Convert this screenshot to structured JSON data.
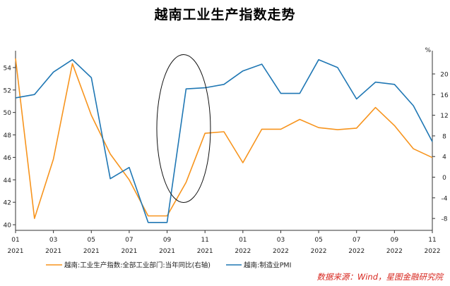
{
  "chart_data": {
    "type": "line",
    "title": "越南工业生产指数走势",
    "x_months": [
      "01",
      "02",
      "03",
      "04",
      "05",
      "06",
      "07",
      "08",
      "09",
      "10",
      "11",
      "12",
      "01",
      "02",
      "03",
      "04",
      "05",
      "06",
      "07",
      "08",
      "09",
      "10",
      "11"
    ],
    "x_labels": [
      {
        "index": 0,
        "month": "01",
        "year": "2021"
      },
      {
        "index": 2,
        "month": "03",
        "year": "2021"
      },
      {
        "index": 4,
        "month": "05",
        "year": "2021"
      },
      {
        "index": 6,
        "month": "07",
        "year": "2021"
      },
      {
        "index": 8,
        "month": "09",
        "year": "2021"
      },
      {
        "index": 10,
        "month": "11",
        "year": "2021"
      },
      {
        "index": 12,
        "month": "01",
        "year": "2022"
      },
      {
        "index": 14,
        "month": "03",
        "year": "2022"
      },
      {
        "index": 16,
        "month": "05",
        "year": "2022"
      },
      {
        "index": 18,
        "month": "07",
        "year": "2022"
      },
      {
        "index": 20,
        "month": "09",
        "year": "2022"
      },
      {
        "index": 22,
        "month": "11",
        "year": "2022"
      }
    ],
    "left_axis": {
      "ylim": [
        39.5,
        55.5
      ],
      "ticks": [
        "40",
        "42",
        "44",
        "46",
        "48",
        "50",
        "52",
        "54"
      ]
    },
    "right_axis": {
      "unit": "%",
      "ylim": [
        -10.3,
        24.5
      ],
      "ticks": [
        "-8",
        "-4",
        "0",
        "4",
        "8",
        "12",
        "16",
        "20"
      ]
    },
    "series": [
      {
        "name": "越南:工业生产指数:全部工业部门:当年同比(右轴)",
        "axis": "right",
        "color": "#f7941d",
        "values": [
          23.0,
          -8.0,
          3.5,
          22.0,
          12.0,
          4.5,
          -0.5,
          -7.5,
          -7.5,
          -1.0,
          8.5,
          8.8,
          2.8,
          9.3,
          9.3,
          11.2,
          9.6,
          9.2,
          9.5,
          13.5,
          10.0,
          5.5,
          3.8
        ]
      },
      {
        "name": "越南:制造业PMI",
        "axis": "left",
        "color": "#1f77b4",
        "values": [
          51.3,
          51.6,
          53.6,
          54.7,
          53.1,
          44.1,
          45.1,
          40.2,
          40.2,
          52.1,
          52.2,
          52.5,
          53.7,
          54.3,
          51.7,
          51.7,
          54.7,
          54.0,
          51.2,
          52.7,
          52.5,
          50.6,
          47.4
        ]
      }
    ],
    "annotations": [
      {
        "shape": "ellipse",
        "around": [
          "09",
          "10"
        ],
        "color": "#111111"
      }
    ],
    "legend_position": "bottom",
    "grid": false
  },
  "source": "数据来源：Wind，星图金融研究院"
}
